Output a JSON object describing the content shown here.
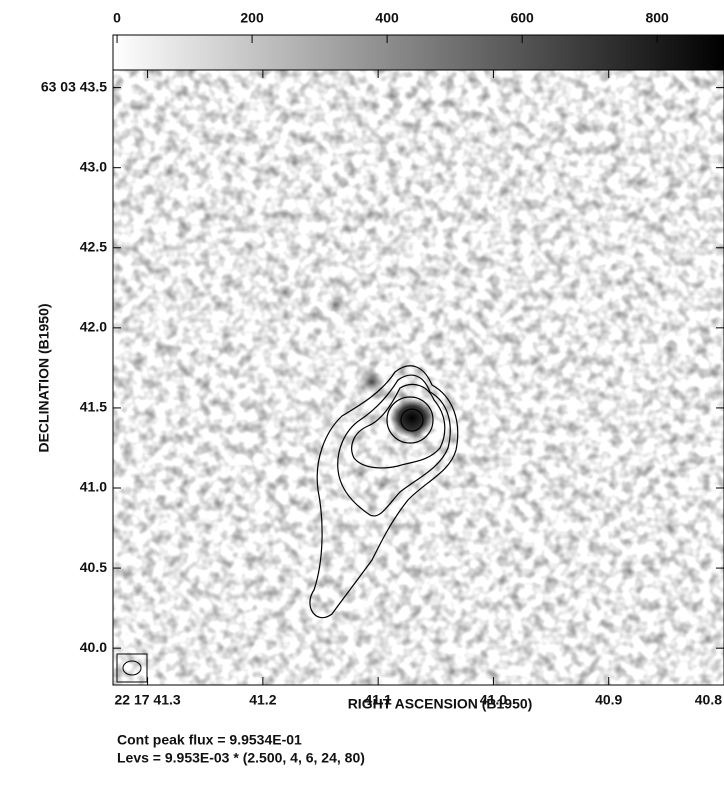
{
  "chart_data": {
    "type": "contour",
    "x_label": "RIGHT ASCENSION (B1950)",
    "y_label": "DECLINATION (B1950)",
    "xlim": [
      41.33,
      40.8
    ],
    "xticks": [
      {
        "value": 41.3,
        "label": "22 17 41.3"
      },
      {
        "value": 41.2,
        "label": "41.2"
      },
      {
        "value": 41.1,
        "label": "41.1"
      },
      {
        "value": 41.0,
        "label": "41.0"
      },
      {
        "value": 40.9,
        "label": "40.9"
      },
      {
        "value": 40.8,
        "label": "40.8"
      }
    ],
    "ylim": [
      39.77,
      43.61
    ],
    "yticks": [
      {
        "value": 43.5,
        "label": "63 03 43.5"
      },
      {
        "value": 43.0,
        "label": "43.0"
      },
      {
        "value": 42.5,
        "label": "42.5"
      },
      {
        "value": 42.0,
        "label": "42.0"
      },
      {
        "value": 41.5,
        "label": "41.5"
      },
      {
        "value": 41.0,
        "label": "41.0"
      },
      {
        "value": 40.5,
        "label": "40.5"
      },
      {
        "value": 40.0,
        "label": "40.0"
      }
    ],
    "colorbar_lim": [
      -6,
      899
    ],
    "colorbar_ticks": [
      0,
      200,
      400,
      600,
      800
    ],
    "notes": [
      "Cont peak flux =  9.9534E-01",
      "Levs = 9.953E-03 * (2.500, 4, 6, 24, 80)"
    ]
  }
}
